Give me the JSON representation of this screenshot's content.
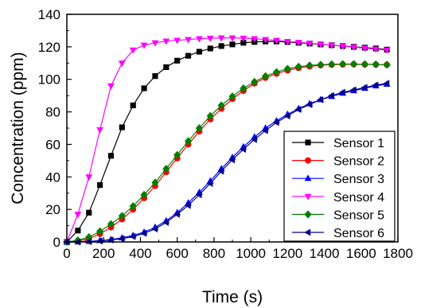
{
  "chart_data": {
    "type": "line",
    "xlabel": "Time (s)",
    "ylabel": "Concentration (ppm)",
    "xlim": [
      0,
      1800
    ],
    "ylim": [
      0,
      140
    ],
    "xticks": [
      "0",
      "200",
      "400",
      "600",
      "800",
      "1000",
      "1200",
      "1400",
      "1600",
      "1800"
    ],
    "yticks": [
      "0",
      "20",
      "40",
      "60",
      "80",
      "100",
      "120",
      "140"
    ],
    "grid": false,
    "legend_position": "bottom-right",
    "x": [
      0,
      60,
      120,
      180,
      240,
      300,
      360,
      420,
      480,
      540,
      600,
      660,
      720,
      780,
      840,
      900,
      960,
      1020,
      1080,
      1140,
      1200,
      1260,
      1320,
      1380,
      1440,
      1500,
      1560,
      1620,
      1680,
      1740
    ],
    "series": [
      {
        "name": "Sensor 1",
        "color": "#000000",
        "marker": "square",
        "values": [
          0,
          7,
          18,
          35,
          53,
          70.5,
          84,
          94.5,
          102,
          107.5,
          111.5,
          114.5,
          117,
          119,
          120.5,
          121.5,
          122.5,
          123,
          123.3,
          123.3,
          123,
          122.5,
          122,
          121.5,
          121,
          120.5,
          120,
          119.5,
          119,
          118.3
        ]
      },
      {
        "name": "Sensor 2",
        "color": "#ff0000",
        "marker": "circle",
        "values": [
          0,
          0.5,
          2,
          5,
          9,
          14,
          20,
          27,
          34.5,
          43,
          51.5,
          60,
          68,
          75.5,
          82,
          88,
          93,
          97.5,
          101,
          103.5,
          105.5,
          107,
          108,
          108.7,
          109,
          109.2,
          109.3,
          109.2,
          109.1,
          109
        ]
      },
      {
        "name": "Sensor 3",
        "color": "#0000ff",
        "marker": "triangle-up",
        "values": [
          0,
          0,
          0.3,
          0.8,
          1.5,
          2.5,
          4,
          6,
          9,
          13,
          18,
          24,
          30.5,
          37.5,
          45,
          52,
          58.5,
          64.5,
          70,
          74.5,
          78.5,
          82,
          85,
          87.5,
          89.5,
          91.5,
          93,
          94.5,
          96,
          97
        ]
      },
      {
        "name": "Sensor 4",
        "color": "#ff00ff",
        "marker": "triangle-down",
        "values": [
          0,
          17,
          40,
          69,
          96,
          110,
          118,
          121,
          122.5,
          123.5,
          124,
          124.5,
          125,
          125.3,
          125.5,
          125.5,
          125.3,
          125,
          124.5,
          124,
          123.3,
          122.8,
          122.2,
          121.6,
          121,
          120.4,
          119.8,
          119.2,
          118.6,
          118
        ]
      },
      {
        "name": "Sensor 5",
        "color": "#008000",
        "marker": "diamond",
        "values": [
          0,
          1,
          3,
          6.5,
          11,
          16,
          22,
          29,
          36.5,
          45,
          53.5,
          62,
          70,
          77.5,
          84,
          89.5,
          94.5,
          98.5,
          102,
          104.5,
          106.5,
          107.8,
          108.6,
          109,
          109.3,
          109.4,
          109.4,
          109.3,
          109.2,
          109
        ]
      },
      {
        "name": "Sensor 6",
        "color": "#00008b",
        "marker": "triangle-left",
        "values": [
          0,
          0,
          0.2,
          0.6,
          1.2,
          2,
          3.3,
          5.3,
          8,
          12,
          17,
          22.5,
          29,
          36,
          43.5,
          50.5,
          57,
          63,
          68.5,
          73.5,
          77.5,
          81.5,
          84.5,
          87.5,
          90,
          92,
          93.5,
          95,
          96.5,
          97.5
        ]
      }
    ]
  }
}
